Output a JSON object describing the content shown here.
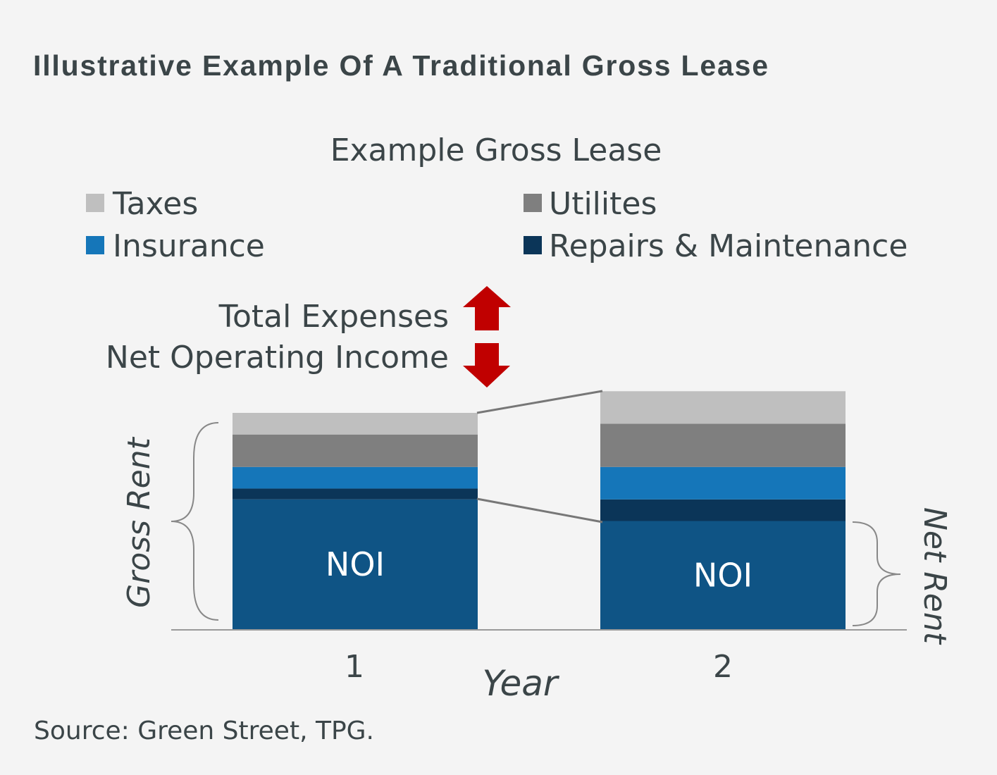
{
  "title": "Illustrative Example Of A Traditional Gross Lease",
  "source": "Source: Green Street, TPG.",
  "chart_data": {
    "type": "bar",
    "stacked": true,
    "title": "Example Gross Lease",
    "xlabel": "Year",
    "ylabel": "Gross Rent",
    "categories": [
      "1",
      "2"
    ],
    "series": [
      {
        "name": "NOI",
        "values": [
          60,
          50
        ],
        "color": "#0f5485"
      },
      {
        "name": "Repairs & Maintenance",
        "values": [
          5,
          10
        ],
        "color": "#0b3558"
      },
      {
        "name": "Insurance",
        "values": [
          10,
          15
        ],
        "color": "#1576b9"
      },
      {
        "name": "Utilites",
        "values": [
          15,
          20
        ],
        "color": "#7f7f7f"
      },
      {
        "name": "Taxes",
        "values": [
          10,
          15
        ],
        "color": "#bfbfbf"
      }
    ],
    "legend": [
      {
        "label": "Taxes",
        "color": "#bfbfbf"
      },
      {
        "label": "Utilites",
        "color": "#7f7f7f"
      },
      {
        "label": "Insurance",
        "color": "#1576b9"
      },
      {
        "label": "Repairs & Maintenance",
        "color": "#0b3558"
      }
    ],
    "legend_position": "top",
    "bar_label": "NOI",
    "annotations": {
      "total_expenses": "Total Expenses",
      "noi": "Net Operating Income",
      "net_rent": "Net Rent",
      "arrow_color": "#c00000"
    },
    "grid": false
  }
}
